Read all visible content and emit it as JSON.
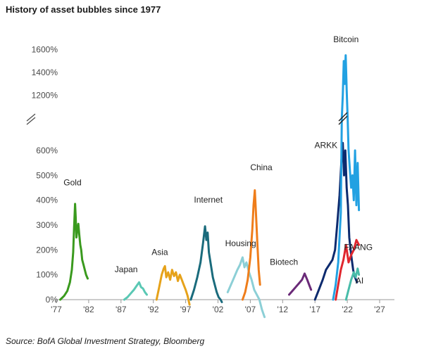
{
  "header": {
    "title": "History of asset bubbles since 1977"
  },
  "footer": {
    "source": "Source: BofA Global Investment Strategy, Bloomberg"
  },
  "chart_data": {
    "type": "line",
    "title": "History of asset bubbles since 1977",
    "xlabel": "",
    "ylabel": "",
    "x_ticks": [
      {
        "value": 1977,
        "label": "'77"
      },
      {
        "value": 1982,
        "label": "'82"
      },
      {
        "value": 1987,
        "label": "'87"
      },
      {
        "value": 1992,
        "label": "'92"
      },
      {
        "value": 1997,
        "label": "'97"
      },
      {
        "value": 2002,
        "label": "'02"
      },
      {
        "value": 2007,
        "label": "'07"
      },
      {
        "value": 2012,
        "label": "'12"
      },
      {
        "value": 2017,
        "label": "'17"
      },
      {
        "value": 2022,
        "label": "'22"
      },
      {
        "value": 2027,
        "label": "'27"
      }
    ],
    "y_ticks": [
      {
        "value": 0,
        "label": "0%"
      },
      {
        "value": 100,
        "label": "100%"
      },
      {
        "value": 200,
        "label": "200%"
      },
      {
        "value": 300,
        "label": "300%"
      },
      {
        "value": 400,
        "label": "400%"
      },
      {
        "value": 500,
        "label": "500%"
      },
      {
        "value": 600,
        "label": "600%"
      },
      {
        "value": 1200,
        "label": "1200%"
      },
      {
        "value": 1400,
        "label": "1400%"
      },
      {
        "value": 1600,
        "label": "1600%"
      }
    ],
    "xlim": [
      1977,
      2029
    ],
    "ylim": [
      -20,
      1700
    ],
    "axis_break": {
      "from": 650,
      "to": 1000
    },
    "grid": false,
    "series": [
      {
        "name": "Gold",
        "color": "#3a9a1e",
        "x": [
          1977.6,
          1978.2,
          1978.7,
          1979.1,
          1979.4,
          1979.6,
          1979.75,
          1979.9,
          1980.0,
          1980.1,
          1980.25,
          1980.4,
          1980.55,
          1980.7,
          1980.85,
          1981.0,
          1981.2,
          1981.4,
          1981.6,
          1981.85
        ],
        "y": [
          0,
          15,
          35,
          70,
          120,
          190,
          290,
          385,
          330,
          250,
          280,
          305,
          260,
          220,
          200,
          160,
          140,
          120,
          100,
          85
        ]
      },
      {
        "name": "Japan",
        "color": "#5ac8b4",
        "x": [
          1987.5,
          1988.0,
          1988.5,
          1989.0,
          1989.4,
          1989.8,
          1990.1,
          1990.4,
          1990.7,
          1991.0
        ],
        "y": [
          0,
          10,
          25,
          40,
          55,
          70,
          50,
          45,
          30,
          20
        ]
      },
      {
        "name": "Asia",
        "color": "#e6a21a",
        "x": [
          1992.5,
          1992.9,
          1993.3,
          1993.6,
          1993.8,
          1994.0,
          1994.3,
          1994.6,
          1994.9,
          1995.2,
          1995.5,
          1995.8,
          1996.1,
          1996.4,
          1996.7,
          1997.0,
          1997.3,
          1997.6
        ],
        "y": [
          0,
          50,
          100,
          125,
          135,
          90,
          110,
          80,
          120,
          95,
          110,
          75,
          100,
          80,
          60,
          40,
          15,
          -20
        ]
      },
      {
        "name": "Internet",
        "color": "#1a6b7c",
        "x": [
          1997.8,
          1998.3,
          1998.8,
          1999.3,
          1999.7,
          2000.0,
          2000.2,
          2000.4,
          2000.6,
          2000.9,
          2001.2,
          2001.5,
          2001.8,
          2002.1,
          2002.4,
          2002.6
        ],
        "y": [
          0,
          40,
          90,
          150,
          230,
          295,
          240,
          270,
          190,
          140,
          90,
          60,
          30,
          10,
          0,
          -10
        ]
      },
      {
        "name": "Housing",
        "color": "#8ccfd6",
        "x": [
          2003.5,
          2004.0,
          2004.5,
          2005.0,
          2005.4,
          2005.8,
          2006.1,
          2006.4,
          2006.8,
          2007.2,
          2007.6,
          2008.0,
          2008.4,
          2008.8,
          2009.2
        ],
        "y": [
          30,
          60,
          90,
          120,
          140,
          170,
          130,
          150,
          110,
          80,
          40,
          20,
          0,
          -40,
          -70
        ]
      },
      {
        "name": "China",
        "color": "#ef7d1a",
        "x": [
          2005.8,
          2006.2,
          2006.6,
          2007.0,
          2007.3,
          2007.5,
          2007.7,
          2007.9,
          2008.1,
          2008.3,
          2008.5
        ],
        "y": [
          0,
          30,
          80,
          170,
          280,
          380,
          440,
          330,
          220,
          120,
          60
        ]
      },
      {
        "name": "Biotech",
        "color": "#6a2a78",
        "x": [
          2013.0,
          2013.5,
          2014.0,
          2014.5,
          2015.0,
          2015.4,
          2015.8,
          2016.1,
          2016.4
        ],
        "y": [
          20,
          35,
          50,
          65,
          80,
          105,
          80,
          60,
          40
        ]
      },
      {
        "name": "ARKK",
        "color": "#0c2a6e",
        "x": [
          2017.0,
          2017.6,
          2018.2,
          2018.7,
          2019.2,
          2019.7,
          2020.1,
          2020.5,
          2020.8,
          2021.1,
          2021.3,
          2021.5,
          2021.7,
          2021.9,
          2022.1,
          2022.3,
          2022.6,
          2022.9,
          2023.2,
          2023.5
        ],
        "y": [
          0,
          40,
          80,
          120,
          140,
          160,
          200,
          320,
          420,
          560,
          630,
          500,
          600,
          450,
          380,
          250,
          180,
          120,
          90,
          70
        ]
      },
      {
        "name": "Bitcoin",
        "color": "#22a1e2",
        "x": [
          2019.8,
          2020.2,
          2020.6,
          2021.0,
          2021.15,
          2021.3,
          2021.45,
          2021.6,
          2021.75,
          2021.9,
          2022.05,
          2022.2,
          2022.4,
          2022.6,
          2022.8,
          2023.0,
          2023.2,
          2023.4,
          2023.6,
          2023.8
        ],
        "y": [
          0,
          60,
          150,
          350,
          700,
          1200,
          1500,
          1300,
          1550,
          1250,
          800,
          600,
          520,
          450,
          500,
          400,
          600,
          380,
          550,
          360
        ]
      },
      {
        "name": "FAANG",
        "color": "#e0262e",
        "x": [
          2020.2,
          2020.6,
          2021.0,
          2021.4,
          2021.8,
          2022.2,
          2022.6,
          2023.0,
          2023.4,
          2023.8
        ],
        "y": [
          0,
          60,
          120,
          160,
          220,
          150,
          180,
          200,
          240,
          220
        ]
      },
      {
        "name": "AI",
        "color": "#48bca9",
        "x": [
          2021.8,
          2022.2,
          2022.6,
          2023.0,
          2023.3,
          2023.6,
          2023.8
        ],
        "y": [
          0,
          40,
          80,
          110,
          90,
          125,
          100
        ]
      }
    ],
    "annotations": [
      {
        "text": "Gold",
        "x": 1979.5,
        "y": 460
      },
      {
        "text": "Japan",
        "x": 1987.8,
        "y": 110
      },
      {
        "text": "Asia",
        "x": 1993.0,
        "y": 180
      },
      {
        "text": "Internet",
        "x": 2000.5,
        "y": 390
      },
      {
        "text": "Housing",
        "x": 2005.5,
        "y": 215
      },
      {
        "text": "China",
        "x": 2008.7,
        "y": 520
      },
      {
        "text": "Biotech",
        "x": 2012.2,
        "y": 140
      },
      {
        "text": "ARKK",
        "x": 2018.7,
        "y": 610
      },
      {
        "text": "Bitcoin",
        "x": 2021.8,
        "y": 1665
      },
      {
        "text": "FAANG",
        "x": 2023.7,
        "y": 200
      },
      {
        "text": "AI",
        "x": 2023.9,
        "y": 65
      }
    ]
  }
}
